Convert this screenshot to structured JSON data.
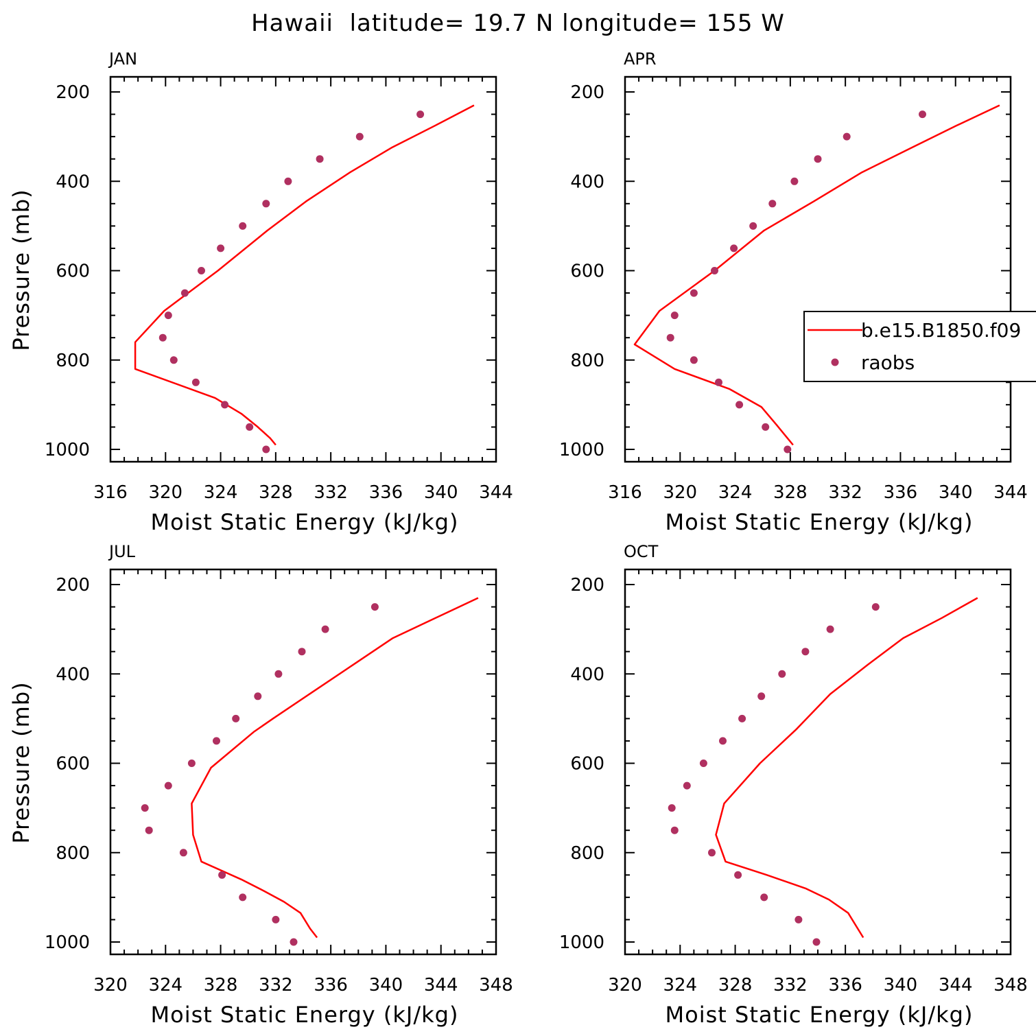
{
  "title": "Hawaii  latitude= 19.7 N longitude= 155 W",
  "colors": {
    "model": "#ff0000",
    "obs": "#b03060"
  },
  "legend": {
    "model_label": "b.e15.B1850.f09",
    "obs_label": "raobs"
  },
  "chart_data": [
    {
      "type": "line",
      "panel_title": "JAN",
      "xlabel": "Moist Static Energy (kJ/kg)",
      "ylabel": "Pressure (mb)",
      "xlim": [
        316,
        344
      ],
      "ylim": [
        200,
        1000
      ],
      "y_inverted": true,
      "xticks": [
        316,
        320,
        324,
        328,
        332,
        336,
        340,
        344
      ],
      "yticks": [
        200,
        400,
        600,
        800,
        1000
      ],
      "show_ylabel": true,
      "show_legend": false,
      "series": [
        {
          "name": "b.e15.B1850.f09",
          "kind": "line",
          "x": [
            342.4,
            339.6,
            336.4,
            333.4,
            330.2,
            327.4,
            323.8,
            319.9,
            317.8,
            317.8,
            323.6,
            325.5,
            326.7,
            327.6,
            328.0
          ],
          "y": [
            230,
            275,
            325,
            380,
            445,
            510,
            600,
            690,
            760,
            820,
            885,
            920,
            950,
            975,
            990
          ]
        },
        {
          "name": "raobs",
          "kind": "scatter",
          "x": [
            338.5,
            334.1,
            331.2,
            328.9,
            327.3,
            325.6,
            324.0,
            322.6,
            321.4,
            320.2,
            319.8,
            320.6,
            322.2,
            324.3,
            326.1,
            327.3
          ],
          "y": [
            250,
            300,
            350,
            400,
            450,
            500,
            550,
            600,
            650,
            700,
            750,
            800,
            850,
            900,
            950,
            1000
          ]
        }
      ]
    },
    {
      "type": "line",
      "panel_title": "APR",
      "xlabel": "Moist Static Energy (kJ/kg)",
      "ylabel": "Pressure (mb)",
      "xlim": [
        316,
        344
      ],
      "ylim": [
        200,
        1000
      ],
      "y_inverted": true,
      "xticks": [
        316,
        320,
        324,
        328,
        332,
        336,
        340,
        344
      ],
      "yticks": [
        200,
        400,
        600,
        800,
        1000
      ],
      "show_ylabel": false,
      "show_legend": true,
      "series": [
        {
          "name": "b.e15.B1850.f09",
          "kind": "line",
          "x": [
            343.2,
            340.1,
            336.8,
            333.2,
            329.7,
            326.1,
            322.5,
            318.5,
            316.7,
            319.6,
            323.6,
            325.9,
            327.0,
            327.8,
            328.2
          ],
          "y": [
            230,
            275,
            325,
            380,
            445,
            510,
            600,
            690,
            765,
            820,
            865,
            905,
            945,
            975,
            990
          ]
        },
        {
          "name": "raobs",
          "kind": "scatter",
          "x": [
            337.6,
            332.1,
            330.0,
            328.3,
            326.7,
            325.3,
            323.9,
            322.5,
            321.0,
            319.6,
            319.3,
            321.0,
            322.8,
            324.3,
            326.2,
            327.8
          ],
          "y": [
            250,
            300,
            350,
            400,
            450,
            500,
            550,
            600,
            650,
            700,
            750,
            800,
            850,
            900,
            950,
            1000
          ]
        }
      ]
    },
    {
      "type": "line",
      "panel_title": "JUL",
      "xlabel": "Moist Static Energy (kJ/kg)",
      "ylabel": "Pressure (mb)",
      "xlim": [
        320,
        348
      ],
      "ylim": [
        200,
        1000
      ],
      "y_inverted": true,
      "xticks": [
        320,
        324,
        328,
        332,
        336,
        340,
        344,
        348
      ],
      "yticks": [
        200,
        400,
        600,
        800,
        1000
      ],
      "show_ylabel": true,
      "show_legend": false,
      "series": [
        {
          "name": "b.e15.B1850.f09",
          "kind": "line",
          "x": [
            346.7,
            343.6,
            340.5,
            337.6,
            334.7,
            331.8,
            330.4,
            327.3,
            325.9,
            326.0,
            326.6,
            329.5,
            331.1,
            332.6,
            333.8,
            334.5,
            335.0
          ],
          "y": [
            230,
            275,
            320,
            380,
            440,
            500,
            530,
            610,
            690,
            760,
            820,
            860,
            885,
            910,
            935,
            970,
            990
          ]
        },
        {
          "name": "raobs",
          "kind": "scatter",
          "x": [
            339.2,
            335.6,
            333.9,
            332.2,
            330.7,
            329.1,
            327.7,
            325.9,
            324.2,
            322.5,
            322.8,
            325.3,
            328.1,
            329.6,
            332.0,
            333.3
          ],
          "y": [
            250,
            300,
            350,
            400,
            450,
            500,
            550,
            600,
            650,
            700,
            750,
            800,
            850,
            900,
            950,
            1000
          ]
        }
      ]
    },
    {
      "type": "line",
      "panel_title": "OCT",
      "xlabel": "Moist Static Energy (kJ/kg)",
      "ylabel": "Pressure (mb)",
      "xlim": [
        320,
        348
      ],
      "ylim": [
        200,
        1000
      ],
      "y_inverted": true,
      "xticks": [
        320,
        324,
        328,
        332,
        336,
        340,
        344,
        348
      ],
      "yticks": [
        200,
        400,
        600,
        800,
        1000
      ],
      "show_ylabel": false,
      "show_legend": false,
      "series": [
        {
          "name": "b.e15.B1850.f09",
          "kind": "line",
          "x": [
            345.6,
            343.0,
            340.2,
            337.6,
            334.9,
            332.4,
            329.8,
            327.2,
            326.6,
            327.3,
            330.3,
            333.1,
            334.8,
            336.2,
            336.9,
            337.3
          ],
          "y": [
            230,
            275,
            320,
            380,
            445,
            525,
            600,
            690,
            760,
            820,
            850,
            880,
            905,
            935,
            970,
            990
          ]
        },
        {
          "name": "raobs",
          "kind": "scatter",
          "x": [
            338.2,
            334.9,
            333.1,
            331.4,
            329.9,
            328.5,
            327.1,
            325.7,
            324.5,
            323.4,
            323.6,
            326.3,
            328.2,
            330.1,
            332.6,
            333.9
          ],
          "y": [
            250,
            300,
            350,
            400,
            450,
            500,
            550,
            600,
            650,
            700,
            750,
            800,
            850,
            900,
            950,
            1000
          ]
        }
      ]
    }
  ]
}
